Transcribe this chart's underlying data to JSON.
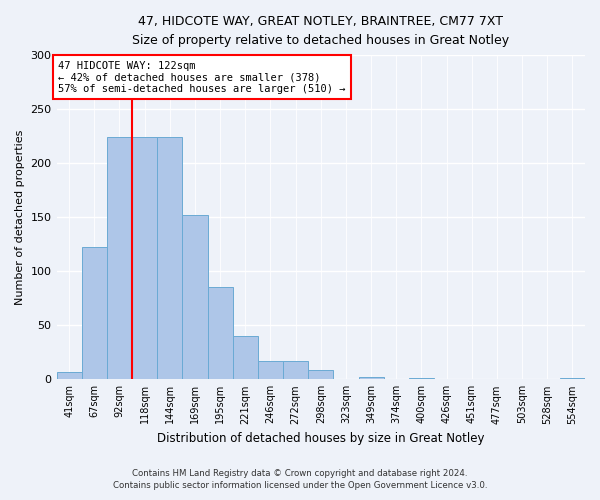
{
  "title1": "47, HIDCOTE WAY, GREAT NOTLEY, BRAINTREE, CM77 7XT",
  "title2": "Size of property relative to detached houses in Great Notley",
  "xlabel": "Distribution of detached houses by size in Great Notley",
  "ylabel": "Number of detached properties",
  "bar_labels": [
    "41sqm",
    "67sqm",
    "92sqm",
    "118sqm",
    "144sqm",
    "169sqm",
    "195sqm",
    "221sqm",
    "246sqm",
    "272sqm",
    "298sqm",
    "323sqm",
    "349sqm",
    "374sqm",
    "400sqm",
    "426sqm",
    "451sqm",
    "477sqm",
    "503sqm",
    "528sqm",
    "554sqm"
  ],
  "bar_values": [
    7,
    122,
    224,
    224,
    224,
    152,
    85,
    40,
    17,
    17,
    9,
    0,
    2,
    0,
    1,
    0,
    0,
    0,
    0,
    0,
    1
  ],
  "bar_color": "#aec6e8",
  "bar_edge_color": "#6aaad4",
  "annotation_text": "47 HIDCOTE WAY: 122sqm\n← 42% of detached houses are smaller (378)\n57% of semi-detached houses are larger (510) →",
  "vline_index": 2.5,
  "vline_color": "red",
  "ylim": [
    0,
    300
  ],
  "yticks": [
    0,
    50,
    100,
    150,
    200,
    250,
    300
  ],
  "footer1": "Contains HM Land Registry data © Crown copyright and database right 2024.",
  "footer2": "Contains public sector information licensed under the Open Government Licence v3.0.",
  "bg_color": "#eef2f9",
  "annotation_box_color": "white",
  "annotation_box_edge": "red"
}
